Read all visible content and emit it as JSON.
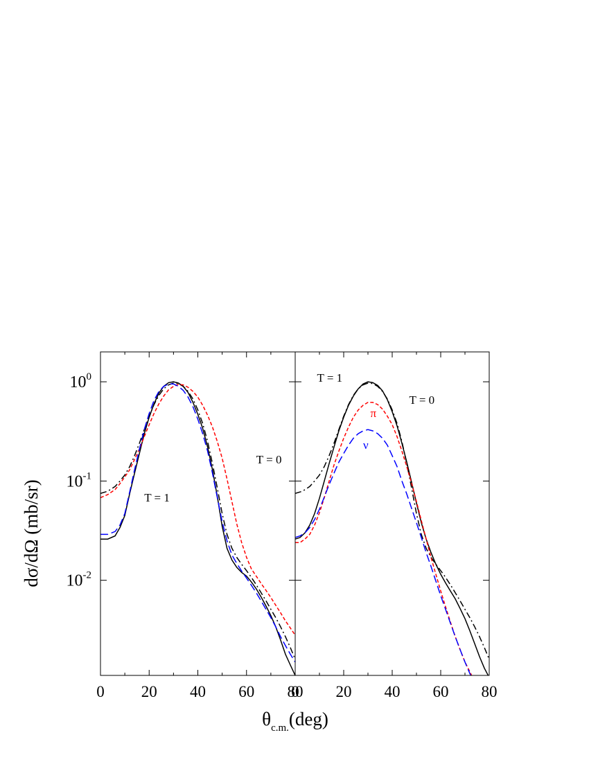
{
  "chart_data": {
    "type": "line",
    "shared_axes": {
      "xlabel": "θ",
      "xlabel_sub": "c.m.",
      "xlabel_unit": "(deg)",
      "ylabel": "dσ/dΩ (mb/sr)",
      "xlim": [
        0,
        80
      ],
      "ylim": [
        0.0011,
        2.0
      ],
      "yscale": "log",
      "x_ticks": [
        0,
        20,
        40,
        60,
        80
      ],
      "y_decade_labels": [
        {
          "value": 1,
          "base": "10",
          "exp": "0"
        },
        {
          "value": 0.1,
          "base": "10",
          "exp": "-1"
        },
        {
          "value": 0.01,
          "base": "10",
          "exp": "-2"
        }
      ],
      "grid": false
    },
    "panels": [
      {
        "id": "left",
        "annotations": [
          {
            "text": "T = 1",
            "x": 18,
            "y": 0.062,
            "color": "#000000"
          },
          {
            "text": "T = 0",
            "x": 64,
            "y": 0.15,
            "color": "#000000"
          }
        ],
        "series": [
          {
            "style": "solid",
            "color": "#000000",
            "x": [
              0,
              3,
              6,
              8,
              10,
              12,
              14,
              16,
              18,
              20,
              22,
              24,
              26,
              28,
              30,
              32,
              34,
              36,
              38,
              40,
              42,
              44,
              46,
              48,
              50,
              52,
              54,
              56,
              58,
              60,
              62,
              64,
              66,
              68,
              70,
              72,
              74,
              76,
              78,
              80
            ],
            "y": [
              0.026,
              0.026,
              0.028,
              0.034,
              0.045,
              0.075,
              0.12,
              0.19,
              0.3,
              0.44,
              0.6,
              0.77,
              0.9,
              0.98,
              1.0,
              0.97,
              0.9,
              0.78,
              0.62,
              0.47,
              0.34,
              0.22,
              0.13,
              0.07,
              0.035,
              0.021,
              0.016,
              0.0135,
              0.012,
              0.011,
              0.0096,
              0.0082,
              0.0068,
              0.0055,
              0.0044,
              0.0034,
              0.0025,
              0.0018,
              0.0014,
              0.0011
            ]
          },
          {
            "style": "dashdot",
            "color": "#000000",
            "x": [
              0,
              3,
              6,
              8,
              10,
              12,
              14,
              16,
              18,
              20,
              22,
              24,
              26,
              28,
              30,
              32,
              34,
              36,
              38,
              40,
              42,
              44,
              46,
              48,
              50,
              52,
              54,
              56,
              58,
              60,
              62,
              64,
              66,
              68,
              70,
              72,
              74,
              76,
              78,
              80
            ],
            "y": [
              0.075,
              0.079,
              0.088,
              0.1,
              0.115,
              0.14,
              0.18,
              0.24,
              0.33,
              0.45,
              0.59,
              0.73,
              0.85,
              0.93,
              0.97,
              0.96,
              0.9,
              0.8,
              0.67,
              0.52,
              0.38,
              0.25,
              0.15,
              0.085,
              0.047,
              0.029,
              0.021,
              0.017,
              0.0145,
              0.0125,
              0.0107,
              0.009,
              0.0075,
              0.0062,
              0.0051,
              0.0042,
              0.0034,
              0.0027,
              0.0021,
              0.0016
            ]
          },
          {
            "style": "dashed",
            "color": "#ff0000",
            "x": [
              0,
              3,
              6,
              8,
              10,
              12,
              14,
              16,
              18,
              20,
              22,
              24,
              26,
              28,
              30,
              32,
              34,
              36,
              38,
              40,
              42,
              44,
              46,
              48,
              50,
              52,
              54,
              56,
              58,
              60,
              62,
              64,
              66,
              68,
              70,
              72,
              74,
              76,
              78,
              80
            ],
            "y": [
              0.068,
              0.073,
              0.082,
              0.094,
              0.11,
              0.13,
              0.165,
              0.21,
              0.28,
              0.37,
              0.48,
              0.6,
              0.72,
              0.83,
              0.9,
              0.94,
              0.93,
              0.88,
              0.8,
              0.7,
              0.58,
              0.46,
              0.35,
              0.25,
              0.17,
              0.105,
              0.062,
              0.037,
              0.024,
              0.017,
              0.013,
              0.011,
              0.0093,
              0.0079,
              0.0067,
              0.0056,
              0.0047,
              0.0039,
              0.0033,
              0.0028
            ]
          },
          {
            "style": "longdash",
            "color": "#0000ff",
            "x": [
              0,
              3,
              6,
              8,
              10,
              12,
              14,
              16,
              18,
              20,
              22,
              24,
              26,
              28,
              30,
              32,
              34,
              36,
              38,
              40,
              42,
              44,
              46,
              48,
              50,
              52,
              54,
              56,
              58,
              60,
              62,
              64,
              66,
              68,
              70,
              72,
              74,
              76,
              78,
              80
            ],
            "y": [
              0.029,
              0.029,
              0.031,
              0.036,
              0.047,
              0.078,
              0.13,
              0.21,
              0.33,
              0.48,
              0.65,
              0.8,
              0.9,
              0.95,
              0.95,
              0.9,
              0.82,
              0.7,
              0.56,
              0.42,
              0.3,
              0.2,
              0.12,
              0.068,
              0.039,
              0.025,
              0.018,
              0.0148,
              0.0124,
              0.0105,
              0.0089,
              0.0075,
              0.0062,
              0.0051,
              0.0042,
              0.0034,
              0.0027,
              0.0022,
              0.0018,
              0.0015
            ]
          }
        ]
      },
      {
        "id": "right",
        "annotations": [
          {
            "text": "T = 1",
            "x": 9,
            "y": 1.0,
            "color": "#000000"
          },
          {
            "text": "T = 0",
            "x": 47,
            "y": 0.6,
            "color": "#000000"
          },
          {
            "text": "π",
            "x": 31,
            "y": 0.44,
            "color": "#ff0000"
          },
          {
            "text": "ν",
            "x": 28,
            "y": 0.21,
            "color": "#0000ff"
          }
        ],
        "series": [
          {
            "style": "solid",
            "color": "#000000",
            "x": [
              0,
              2,
              4,
              6,
              8,
              10,
              12,
              14,
              16,
              18,
              20,
              22,
              24,
              26,
              28,
              30,
              32,
              34,
              36,
              38,
              40,
              42,
              44,
              46,
              48,
              50,
              52,
              54,
              56,
              58,
              60,
              62,
              64,
              66,
              68,
              70,
              72,
              74,
              76,
              78,
              80
            ],
            "y": [
              0.026,
              0.027,
              0.03,
              0.036,
              0.047,
              0.067,
              0.1,
              0.15,
              0.22,
              0.32,
              0.44,
              0.58,
              0.72,
              0.85,
              0.95,
              1.0,
              0.98,
              0.92,
              0.81,
              0.66,
              0.5,
              0.36,
              0.24,
              0.155,
              0.097,
              0.06,
              0.038,
              0.026,
              0.019,
              0.0145,
              0.0115,
              0.0094,
              0.0078,
              0.0065,
              0.0052,
              0.0041,
              0.0031,
              0.0023,
              0.0017,
              0.0013,
              0.00105
            ]
          },
          {
            "style": "dashdot",
            "color": "#000000",
            "x": [
              0,
              3,
              6,
              8,
              10,
              12,
              14,
              16,
              18,
              20,
              22,
              24,
              26,
              28,
              30,
              32,
              34,
              36,
              38,
              40,
              42,
              44,
              46,
              48,
              50,
              52,
              54,
              56,
              58,
              60,
              62,
              64,
              66,
              68,
              70,
              72,
              74,
              76,
              78,
              80
            ],
            "y": [
              0.075,
              0.079,
              0.088,
              0.1,
              0.115,
              0.14,
              0.18,
              0.24,
              0.33,
              0.45,
              0.59,
              0.73,
              0.85,
              0.93,
              0.97,
              0.96,
              0.9,
              0.8,
              0.67,
              0.52,
              0.38,
              0.25,
              0.15,
              0.085,
              0.047,
              0.029,
              0.021,
              0.017,
              0.0145,
              0.0125,
              0.0107,
              0.009,
              0.0075,
              0.0062,
              0.0051,
              0.0042,
              0.0034,
              0.0027,
              0.0021,
              0.0016
            ]
          },
          {
            "style": "dashed",
            "color": "#ff0000",
            "x": [
              0,
              2,
              4,
              6,
              8,
              10,
              12,
              14,
              16,
              18,
              20,
              22,
              24,
              26,
              28,
              30,
              32,
              34,
              36,
              38,
              40,
              42,
              44,
              46,
              48,
              50,
              52,
              54,
              56,
              58,
              60,
              62,
              64,
              66,
              68,
              70,
              72,
              74,
              76,
              78,
              80
            ],
            "y": [
              0.024,
              0.024,
              0.026,
              0.029,
              0.036,
              0.048,
              0.068,
              0.1,
              0.145,
              0.2,
              0.27,
              0.35,
              0.44,
              0.52,
              0.58,
              0.62,
              0.62,
              0.59,
              0.53,
              0.45,
              0.37,
              0.28,
              0.2,
              0.14,
              0.095,
              0.062,
              0.04,
              0.026,
              0.017,
              0.0115,
              0.0078,
              0.0054,
              0.0038,
              0.0027,
              0.002,
              0.0015,
              0.0012,
              0.00095,
              0.00078,
              0.00064,
              0.00053
            ]
          },
          {
            "style": "longdash",
            "color": "#0000ff",
            "x": [
              0,
              2,
              4,
              6,
              8,
              10,
              12,
              14,
              16,
              18,
              20,
              22,
              24,
              26,
              28,
              30,
              32,
              34,
              36,
              38,
              40,
              42,
              44,
              46,
              48,
              50,
              52,
              54,
              56,
              58,
              60,
              62,
              64,
              66,
              68,
              70,
              72,
              74,
              76,
              78,
              80
            ],
            "y": [
              0.027,
              0.028,
              0.03,
              0.034,
              0.041,
              0.052,
              0.069,
              0.092,
              0.12,
              0.155,
              0.19,
              0.23,
              0.27,
              0.3,
              0.32,
              0.33,
              0.32,
              0.3,
              0.27,
              0.23,
              0.18,
              0.14,
              0.1,
              0.074,
              0.053,
              0.038,
              0.027,
              0.019,
              0.0138,
              0.0098,
              0.007,
              0.0051,
              0.0037,
              0.0027,
              0.002,
              0.0015,
              0.00115,
              0.0009,
              0.0007,
              0.00056,
              0.00045
            ]
          }
        ]
      }
    ]
  }
}
